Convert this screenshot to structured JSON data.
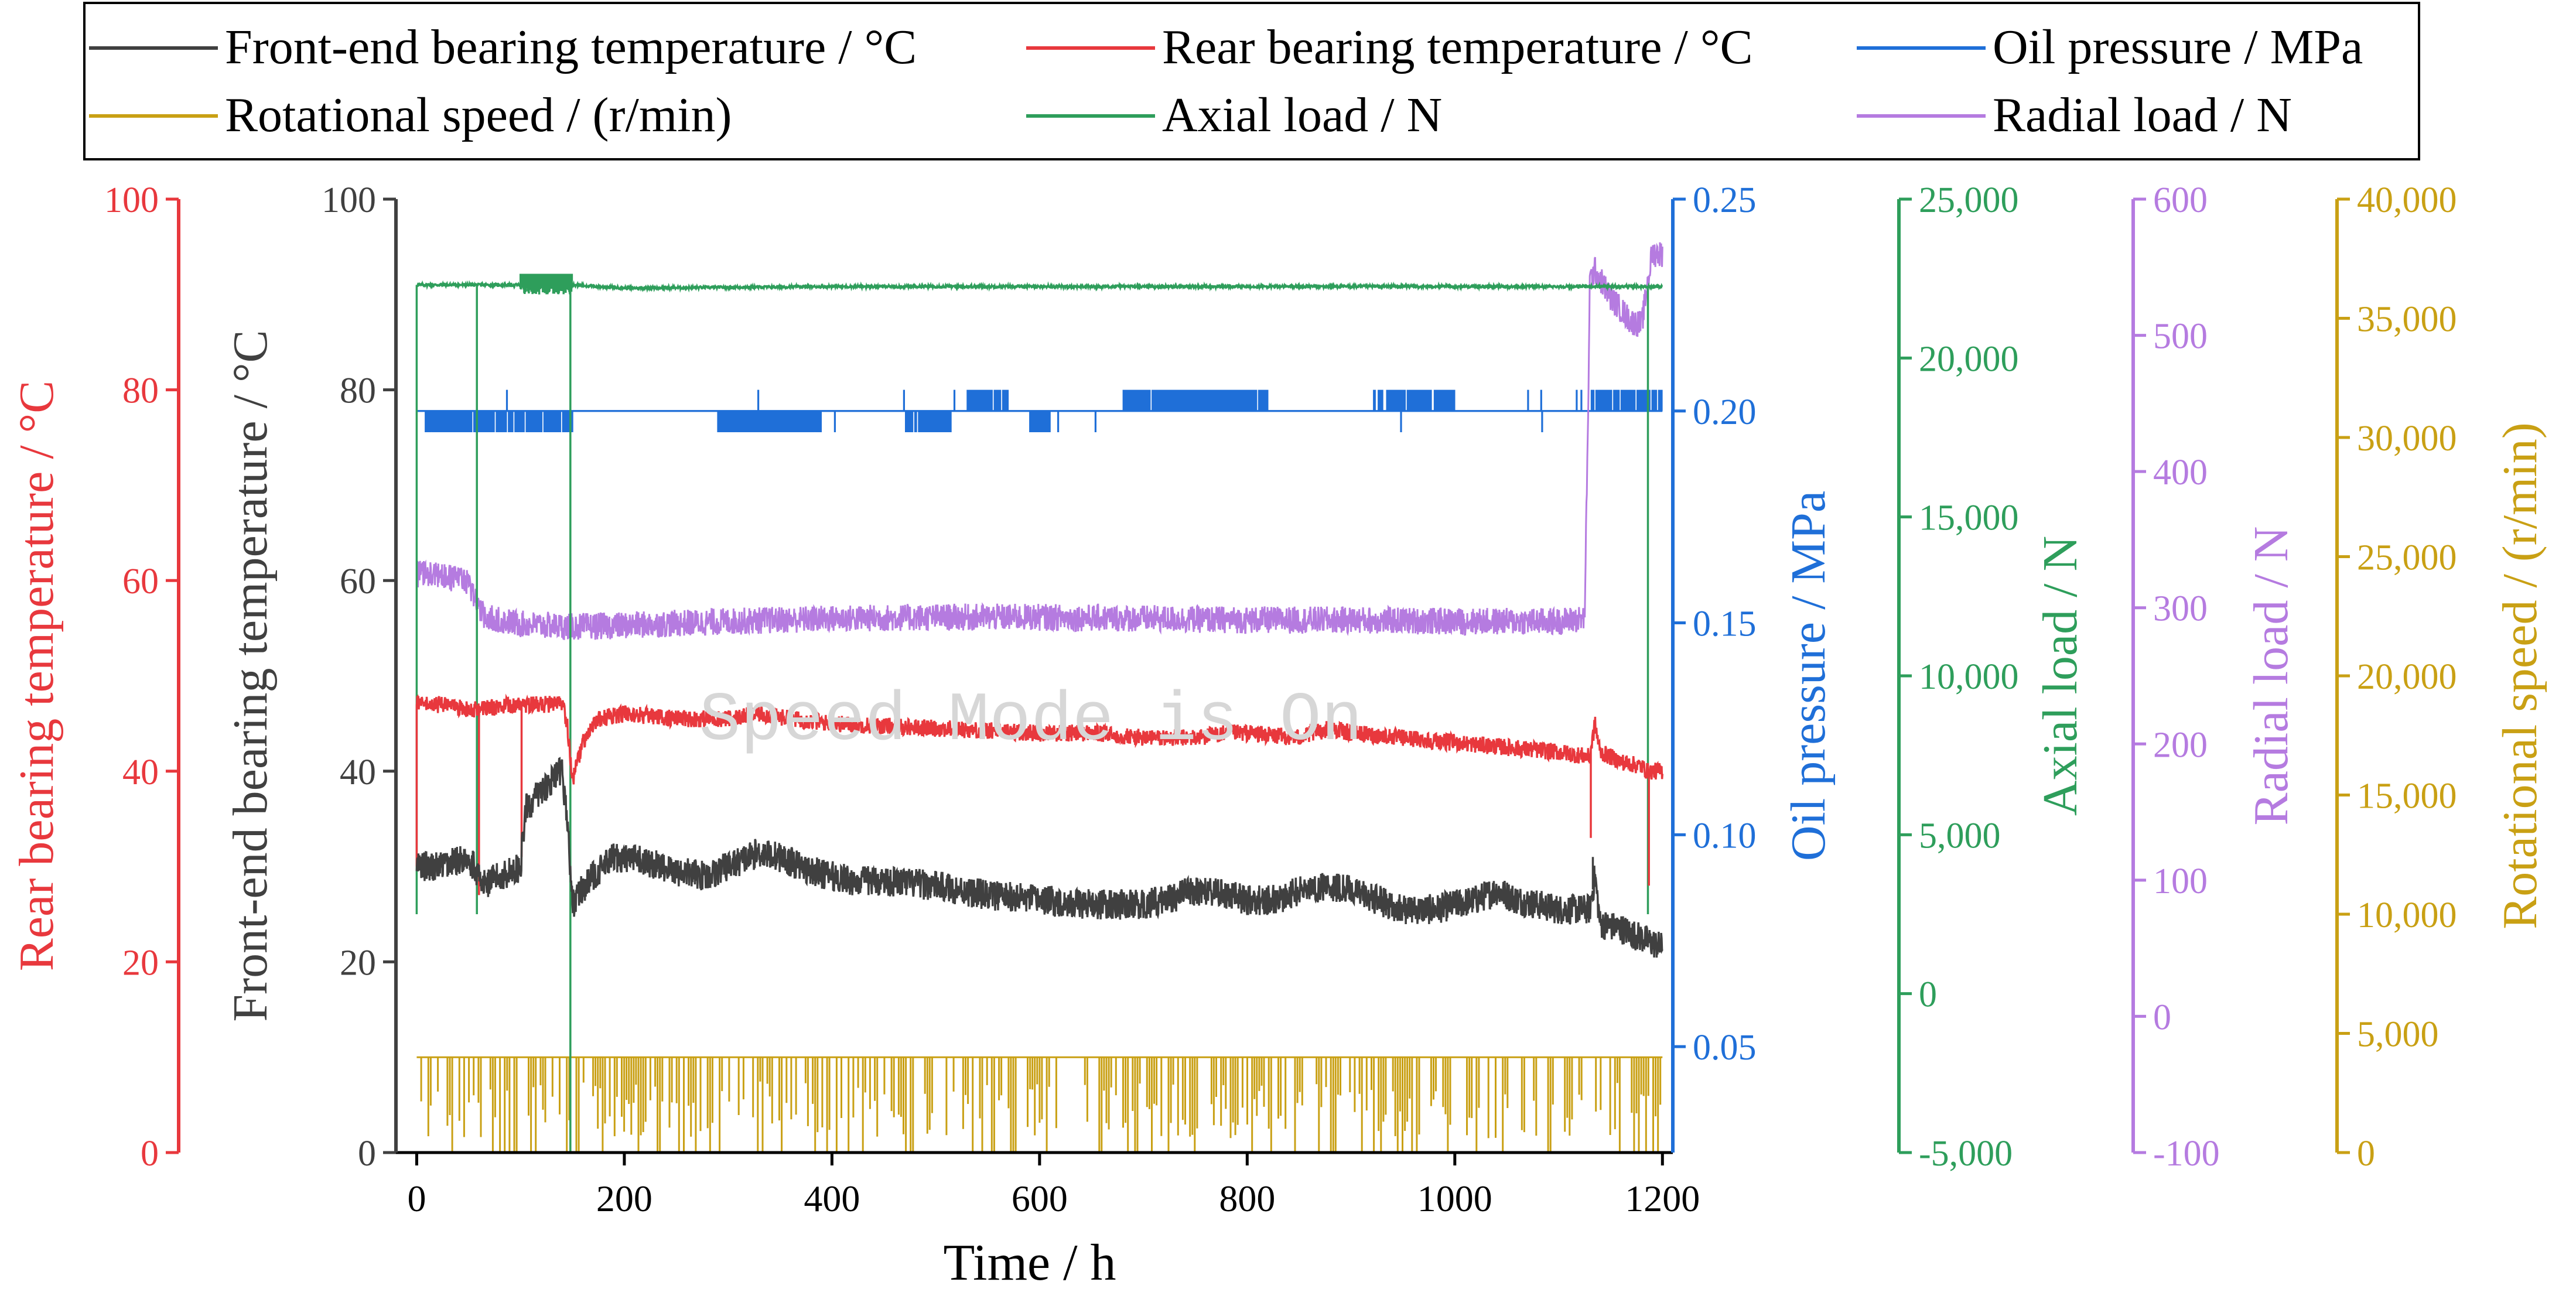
{
  "chart_data": {
    "type": "line",
    "title": "",
    "watermark": "Speed Mode is On",
    "xlabel": "Time / h",
    "xlim": [
      -20,
      1210
    ],
    "xticks": [
      0,
      200,
      400,
      600,
      800,
      1000,
      1200
    ],
    "colors": {
      "front": "#404040",
      "rear": "#e8383d",
      "oil": "#1f6fd8",
      "speed": "#c9a014",
      "axial": "#2e9e5b",
      "radial": "#b57be0"
    },
    "axes": {
      "front": {
        "label": "Front-end bearing temperature / °C",
        "ylim": [
          0,
          100
        ],
        "ticks": [
          0,
          20,
          40,
          60,
          80,
          100
        ],
        "tick_labels": [
          "0",
          "20",
          "40",
          "60",
          "80",
          "100"
        ]
      },
      "rear": {
        "label": "Rear bearing temperature / °C",
        "ylim": [
          0,
          100
        ],
        "ticks": [
          0,
          20,
          40,
          60,
          80,
          100
        ],
        "tick_labels": [
          "0",
          "20",
          "40",
          "60",
          "80",
          "100"
        ]
      },
      "oil": {
        "label": "Oil pressure / MPa",
        "ylim": [
          0.025,
          0.25
        ],
        "ticks": [
          0.05,
          0.1,
          0.15,
          0.2,
          0.25
        ],
        "tick_labels": [
          "0.05",
          "0.10",
          "0.15",
          "0.20",
          "0.25"
        ]
      },
      "axial": {
        "label": "Axial load / N",
        "ylim": [
          -5000,
          25000
        ],
        "ticks": [
          -5000,
          0,
          5000,
          10000,
          15000,
          20000,
          25000
        ],
        "tick_labels": [
          "-5,000",
          "0",
          "5,000",
          "10,000",
          "15,000",
          "20,000",
          "25,000"
        ]
      },
      "radial": {
        "label": "Radial load / N",
        "ylim": [
          -100,
          600
        ],
        "ticks": [
          -100,
          0,
          100,
          200,
          300,
          400,
          500,
          600
        ],
        "tick_labels": [
          "-100",
          "0",
          "100",
          "200",
          "300",
          "400",
          "500",
          "600"
        ]
      },
      "speed": {
        "label": "Rotational speed / (r/min)",
        "ylim": [
          0,
          40000
        ],
        "ticks": [
          0,
          5000,
          10000,
          15000,
          20000,
          25000,
          30000,
          35000,
          40000
        ],
        "tick_labels": [
          "0",
          "5,000",
          "10,000",
          "15,000",
          "20,000",
          "25,000",
          "30,000",
          "35,000",
          "40,000"
        ]
      }
    },
    "legend": {
      "position": "top",
      "entries": [
        {
          "key": "front",
          "label": "Front-end bearing temperature / °C"
        },
        {
          "key": "rear",
          "label": "Rear bearing temperature / °C"
        },
        {
          "key": "oil",
          "label": "Oil pressure / MPa"
        },
        {
          "key": "speed",
          "label": "Rotational speed / (r/min)"
        },
        {
          "key": "axial",
          "label": "Axial load / N"
        },
        {
          "key": "radial",
          "label": "Radial load / N"
        }
      ]
    },
    "series": [
      {
        "key": "front",
        "name": "Front-end bearing temperature / °C",
        "axis": "front",
        "noise": 1.6,
        "x": [
          0,
          20,
          50,
          60,
          62,
          100,
          105,
          120,
          140,
          145,
          150,
          155,
          170,
          190,
          220,
          250,
          280,
          300,
          330,
          350,
          380,
          420,
          450,
          500,
          550,
          600,
          650,
          700,
          720,
          750,
          780,
          800,
          830,
          850,
          880,
          900,
          950,
          980,
          1000,
          1020,
          1040,
          1060,
          1100,
          1130,
          1135,
          1140,
          1160,
          1180,
          1200
        ],
        "y": [
          30,
          30,
          31,
          29,
          28,
          30,
          36,
          38,
          40,
          35,
          26,
          27,
          29,
          31,
          30.5,
          29.5,
          29,
          30,
          31.5,
          31,
          29.5,
          28.5,
          28.5,
          28,
          27,
          26.5,
          26,
          26,
          26.5,
          27.5,
          27,
          26.5,
          26.5,
          27.5,
          28,
          27.5,
          25.5,
          25.5,
          26,
          26.5,
          27.5,
          26.5,
          25.5,
          25.5,
          29,
          24,
          23.5,
          22.5,
          21.5
        ]
      },
      {
        "key": "rear",
        "name": "Rear bearing temperature / °C",
        "axis": "rear",
        "noise": 0.9,
        "x": [
          0,
          20,
          50,
          60,
          100,
          105,
          140,
          145,
          150,
          160,
          175,
          200,
          250,
          300,
          330,
          360,
          400,
          500,
          600,
          650,
          700,
          750,
          780,
          800,
          850,
          880,
          900,
          950,
          1000,
          1050,
          1100,
          1130,
          1135,
          1140,
          1160,
          1180,
          1185,
          1190,
          1200
        ],
        "y": [
          47,
          47,
          46.5,
          46.5,
          47,
          47,
          47,
          45,
          39,
          43,
          45.5,
          46,
          45.5,
          45.5,
          46,
          45.5,
          45,
          44.5,
          44,
          44,
          43.5,
          43.5,
          44,
          44,
          43.5,
          44.5,
          44,
          43.5,
          43,
          42.5,
          42,
          41.5,
          45,
          42,
          41,
          40.5,
          40,
          40,
          40
        ]
      },
      {
        "key": "radial",
        "name": "Radial load / N",
        "axis": "radial",
        "noise": 10,
        "x": [
          0,
          30,
          50,
          60,
          65,
          100,
          150,
          200,
          300,
          400,
          500,
          600,
          700,
          800,
          900,
          1000,
          1100,
          1125,
          1128,
          1130,
          1135,
          1150,
          1170,
          1180,
          1190,
          1195,
          1200
        ],
        "y": [
          325,
          322,
          318,
          300,
          293,
          288,
          286,
          287,
          290,
          292,
          293,
          293,
          292,
          291,
          291,
          290,
          290,
          292,
          420,
          540,
          548,
          528,
          510,
          508,
          560,
          560,
          560
        ]
      },
      {
        "key": "axial",
        "name": "Axial load / N",
        "axis": "axial",
        "noise": 40,
        "x": [
          0,
          100,
          105,
          145,
          150,
          200,
          400,
          600,
          800,
          1000,
          1100,
          1180,
          1200
        ],
        "y": [
          22300,
          22300,
          22500,
          22500,
          22300,
          22200,
          22250,
          22250,
          22250,
          22250,
          22250,
          22250,
          22250
        ]
      },
      {
        "key": "oil",
        "name": "Oil pressure / MPa",
        "axis": "oil",
        "noise": 0,
        "base": 0.2,
        "high": 0.205,
        "low": 0.195,
        "dense_low_ranges": [
          [
            8,
            80
          ],
          [
            80,
            150
          ],
          [
            290,
            390
          ],
          [
            470,
            515
          ],
          [
            590,
            610
          ]
        ],
        "dense_high_ranges": [
          [
            530,
            570
          ],
          [
            680,
            820
          ],
          [
            925,
            1000
          ],
          [
            1130,
            1200
          ]
        ],
        "x": [
          0,
          1200
        ],
        "y": [
          0.2,
          0.2
        ]
      },
      {
        "key": "speed",
        "name": "Rotational speed / (r/min)",
        "axis": "speed",
        "noise": 0,
        "level": 4000,
        "x": [
          0,
          1200
        ],
        "y": [
          4000,
          4000
        ]
      }
    ],
    "events": {
      "axial_dips": [
        {
          "x": 0,
          "min": 2500
        },
        {
          "x": 58,
          "min": 2500
        },
        {
          "x": 148,
          "min": -5000
        },
        {
          "x": 1186,
          "min": 2500
        }
      ],
      "rear_dips": [
        {
          "x": 0,
          "y": 30
        },
        {
          "x": 60,
          "y": 27
        },
        {
          "x": 101,
          "y": 31
        },
        {
          "x": 1131,
          "y": 33
        },
        {
          "x": 1187,
          "y": 28
        }
      ],
      "front_spikes": [
        {
          "x": 1133,
          "y": 31
        }
      ]
    }
  }
}
